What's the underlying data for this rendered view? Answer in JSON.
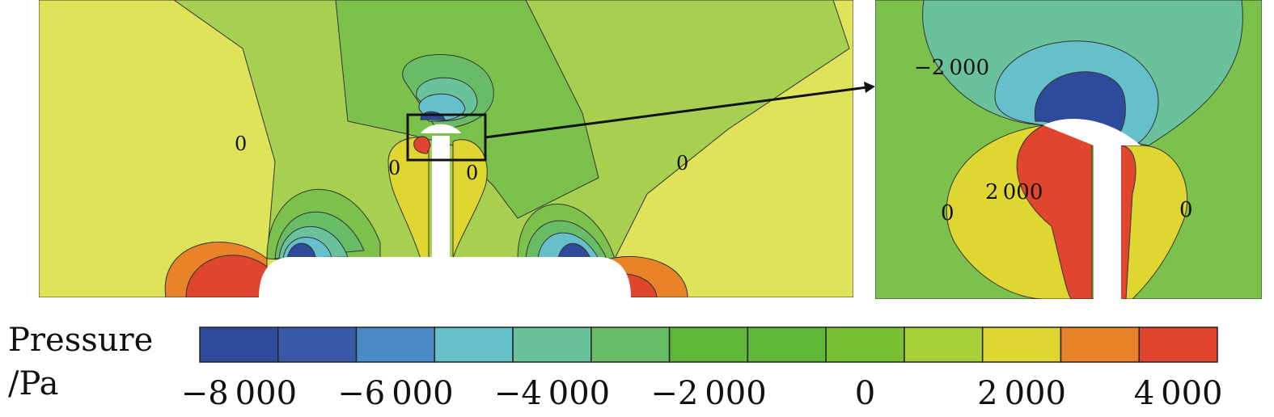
{
  "chart_data": {
    "type": "heatmap",
    "colorbar": {
      "title_line1": "Pressure",
      "title_line2": "/Pa",
      "range": [
        -8500,
        4500
      ],
      "step": 1000,
      "tick_labels": [
        "−8 000",
        "−6 000",
        "−4 000",
        "−2 000",
        "0",
        "2 000",
        "4 000"
      ],
      "tick_values": [
        -8000,
        -6000,
        -4000,
        -2000,
        0,
        2000,
        4000
      ],
      "colors": [
        "#2e4a9a",
        "#3a58a8",
        "#4a8ac6",
        "#66c0cc",
        "#6ac29c",
        "#68bc66",
        "#60b636",
        "#60b636",
        "#78c032",
        "#a6cf38",
        "#e0d632",
        "#e8832a",
        "#e0452e",
        "#d82a2e"
      ]
    },
    "main_panel": {
      "contour_labels": [
        "0",
        "0",
        "0",
        "0"
      ]
    },
    "zoom_panel": {
      "contour_labels": [
        "−2 000",
        "2 000",
        "0",
        "0"
      ]
    }
  }
}
